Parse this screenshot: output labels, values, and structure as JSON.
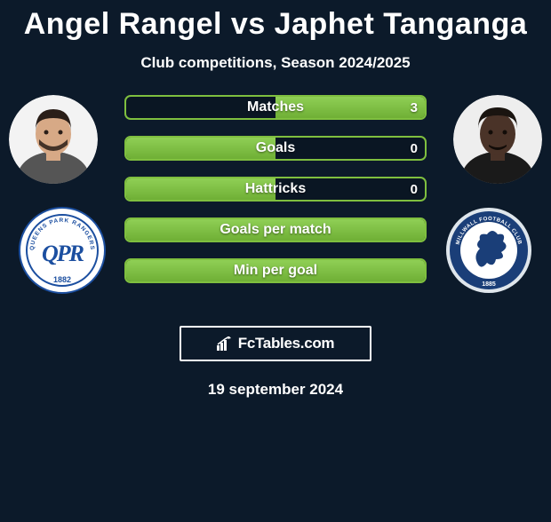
{
  "title": "Angel Rangel vs Japhet Tanganga",
  "subtitle": "Club competitions, Season 2024/2025",
  "date": "19 september 2024",
  "watermark": "FcTables.com",
  "colors": {
    "background": "#0c1a2a",
    "bar_border": "#7fbf3f",
    "bar_fill_top": "#8fcf55",
    "bar_fill_bottom": "#6faf35",
    "text": "#ffffff"
  },
  "players": {
    "left": {
      "name": "Angel Rangel",
      "club": "Queens Park Rangers",
      "avatar": {
        "skin": "#d7a986",
        "hair": "#2a1e18",
        "bg": "#f3f3f3"
      },
      "crest": {
        "primary": "#1c4fa0",
        "secondary": "#ffffff",
        "text": "QPR",
        "year": "1882"
      }
    },
    "right": {
      "name": "Japhet Tanganga",
      "club": "Millwall",
      "avatar": {
        "skin": "#4a3328",
        "hair": "#1a1410",
        "bg": "#eeeeee"
      },
      "crest": {
        "primary": "#1a3e78",
        "secondary": "#ffffff",
        "year": "1885",
        "top_text": "MILLWALL FOOTBALL CLUB"
      }
    }
  },
  "bars": [
    {
      "label": "Matches",
      "left_value": "",
      "right_value": "3",
      "fill": "right"
    },
    {
      "label": "Goals",
      "left_value": "",
      "right_value": "0",
      "fill": "left"
    },
    {
      "label": "Hattricks",
      "left_value": "",
      "right_value": "0",
      "fill": "left"
    },
    {
      "label": "Goals per match",
      "left_value": "",
      "right_value": "",
      "fill": "full"
    },
    {
      "label": "Min per goal",
      "left_value": "",
      "right_value": "",
      "fill": "full"
    }
  ]
}
